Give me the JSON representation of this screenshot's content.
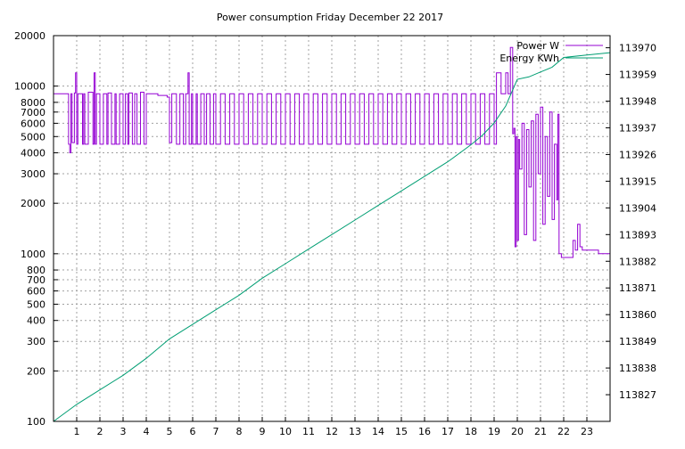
{
  "chart_data": {
    "type": "line",
    "title": "Power consumption Friday December 22 2017",
    "xlabel": "",
    "ylabel": "",
    "y2label": "",
    "x_ticks": [
      "1",
      "2",
      "3",
      "4",
      "5",
      "6",
      "7",
      "8",
      "9",
      "10",
      "11",
      "12",
      "13",
      "14",
      "15",
      "16",
      "17",
      "18",
      "19",
      "20",
      "21",
      "22",
      "23"
    ],
    "xlim": [
      0,
      24
    ],
    "y_scale": "log",
    "ylim": [
      100,
      20000
    ],
    "y_ticks": [
      {
        "value": 100,
        "label": "100"
      },
      {
        "value": 200,
        "label": "200"
      },
      {
        "value": 300,
        "label": "300"
      },
      {
        "value": 400,
        "label": "400"
      },
      {
        "value": 500,
        "label": "500"
      },
      {
        "value": 600,
        "label": "600"
      },
      {
        "value": 700,
        "label": "700"
      },
      {
        "value": 800,
        "label": "800"
      },
      {
        "value": 1000,
        "label": "1000"
      },
      {
        "value": 2000,
        "label": "2000"
      },
      {
        "value": 3000,
        "label": "3000"
      },
      {
        "value": 4000,
        "label": "4000"
      },
      {
        "value": 5000,
        "label": "5000"
      },
      {
        "value": 6000,
        "label": "6000"
      },
      {
        "value": 7000,
        "label": "7000"
      },
      {
        "value": 8000,
        "label": "8000"
      },
      {
        "value": 10000,
        "label": "10000"
      },
      {
        "value": 20000,
        "label": "20000"
      }
    ],
    "y2lim": [
      113816,
      113975
    ],
    "y2_ticks": [
      "113827",
      "113838",
      "113849",
      "113860",
      "113871",
      "113882",
      "113893",
      "113904",
      "113915",
      "113926",
      "113937",
      "113948",
      "113959",
      "113970"
    ],
    "grid": true,
    "legend_position": "top-right",
    "series": [
      {
        "name": "Power W",
        "axis": "y",
        "color": "#9400d3",
        "x": [
          0.0,
          0.55,
          0.6,
          0.65,
          0.7,
          0.75,
          0.8,
          0.9,
          0.95,
          1.0,
          1.05,
          1.25,
          1.3,
          1.35,
          1.5,
          1.7,
          1.75,
          1.8,
          1.85,
          2.0,
          2.15,
          2.3,
          2.35,
          2.5,
          2.65,
          2.7,
          2.85,
          3.0,
          3.1,
          3.2,
          3.25,
          3.4,
          3.5,
          3.6,
          3.75,
          3.9,
          4.0,
          4.5,
          4.9,
          5.0,
          5.1,
          5.3,
          5.45,
          5.6,
          5.7,
          5.8,
          5.85,
          5.95,
          6.0,
          6.15,
          6.2,
          6.35,
          6.5,
          6.6,
          6.75,
          6.9,
          7.0,
          7.2,
          7.4,
          7.6,
          7.8,
          8.0,
          8.2,
          8.4,
          8.6,
          8.8,
          9.0,
          9.2,
          9.4,
          9.6,
          9.8,
          10.0,
          10.2,
          10.4,
          10.6,
          10.8,
          11.0,
          11.2,
          11.4,
          11.6,
          11.8,
          12.0,
          12.2,
          12.4,
          12.6,
          12.8,
          13.0,
          13.2,
          13.4,
          13.6,
          13.8,
          14.0,
          14.2,
          14.4,
          14.6,
          14.8,
          15.0,
          15.2,
          15.4,
          15.6,
          15.8,
          16.0,
          16.2,
          16.4,
          16.6,
          16.8,
          17.0,
          17.2,
          17.4,
          17.6,
          17.8,
          18.0,
          18.2,
          18.4,
          18.6,
          18.8,
          19.0,
          19.1,
          19.3,
          19.5,
          19.6,
          19.7,
          19.8,
          19.85,
          19.9,
          19.95,
          20.0,
          20.05,
          20.1,
          20.2,
          20.3,
          20.4,
          20.5,
          20.6,
          20.7,
          20.8,
          20.9,
          21.0,
          21.1,
          21.2,
          21.3,
          21.4,
          21.5,
          21.6,
          21.7,
          21.75,
          21.8,
          21.9,
          22.0,
          22.4,
          22.5,
          22.6,
          22.7,
          22.8,
          23.0,
          23.5,
          23.9,
          24.0
        ],
        "values": [
          9000,
          9000,
          9000,
          4500,
          4000,
          9000,
          4600,
          9100,
          12000,
          4500,
          9000,
          4500,
          9000,
          4500,
          9200,
          4500,
          12000,
          4500,
          9000,
          4500,
          9000,
          4500,
          9100,
          4500,
          9000,
          4500,
          9000,
          4500,
          9000,
          4500,
          9100,
          4500,
          9000,
          4500,
          9200,
          4500,
          9000,
          8800,
          8600,
          4600,
          9000,
          4500,
          9000,
          4500,
          9000,
          12000,
          4500,
          9000,
          4500,
          9000,
          4500,
          9000,
          4500,
          9000,
          4500,
          9000,
          4500,
          9000,
          4500,
          9000,
          4500,
          9000,
          4500,
          9000,
          4500,
          9000,
          4500,
          9000,
          4500,
          9000,
          4500,
          9000,
          4500,
          9000,
          4500,
          9000,
          4500,
          9000,
          4500,
          9000,
          4500,
          9000,
          4500,
          9000,
          4500,
          9000,
          4500,
          9000,
          4500,
          9000,
          4500,
          9000,
          4500,
          9000,
          4500,
          9000,
          4500,
          9000,
          4500,
          9000,
          4500,
          9000,
          4500,
          9000,
          4500,
          9000,
          4500,
          9000,
          4500,
          9000,
          4500,
          9000,
          4500,
          9000,
          4500,
          9000,
          4500,
          12000,
          9000,
          12000,
          9000,
          17000,
          5200,
          5600,
          1100,
          5000,
          1200,
          4800,
          3200,
          6000,
          1300,
          5500,
          2500,
          6200,
          1200,
          6800,
          3000,
          7500,
          1500,
          5000,
          2200,
          7000,
          1600,
          4500,
          2100,
          6800,
          1000,
          950,
          950,
          1200,
          1050,
          1500,
          1100,
          1050,
          1050,
          1000,
          1000,
          1050
        ]
      },
      {
        "name": "Energy KWh",
        "axis": "y2",
        "color": "#009e73",
        "x": [
          0,
          1,
          2,
          3,
          4,
          5,
          6,
          7,
          8,
          9,
          10,
          11,
          12,
          13,
          14,
          15,
          16,
          17,
          18,
          18.5,
          19,
          19.5,
          20,
          20.5,
          21,
          21.5,
          22,
          23,
          24
        ],
        "values": [
          113816,
          113823,
          113829,
          113835,
          113842,
          113850,
          113856,
          113862,
          113868,
          113875,
          113881,
          113887,
          113893,
          113899,
          113905,
          113911,
          113917,
          113923,
          113930,
          113934,
          113939,
          113946,
          113957,
          113958,
          113960,
          113962,
          113966,
          113967,
          113968
        ]
      }
    ]
  }
}
